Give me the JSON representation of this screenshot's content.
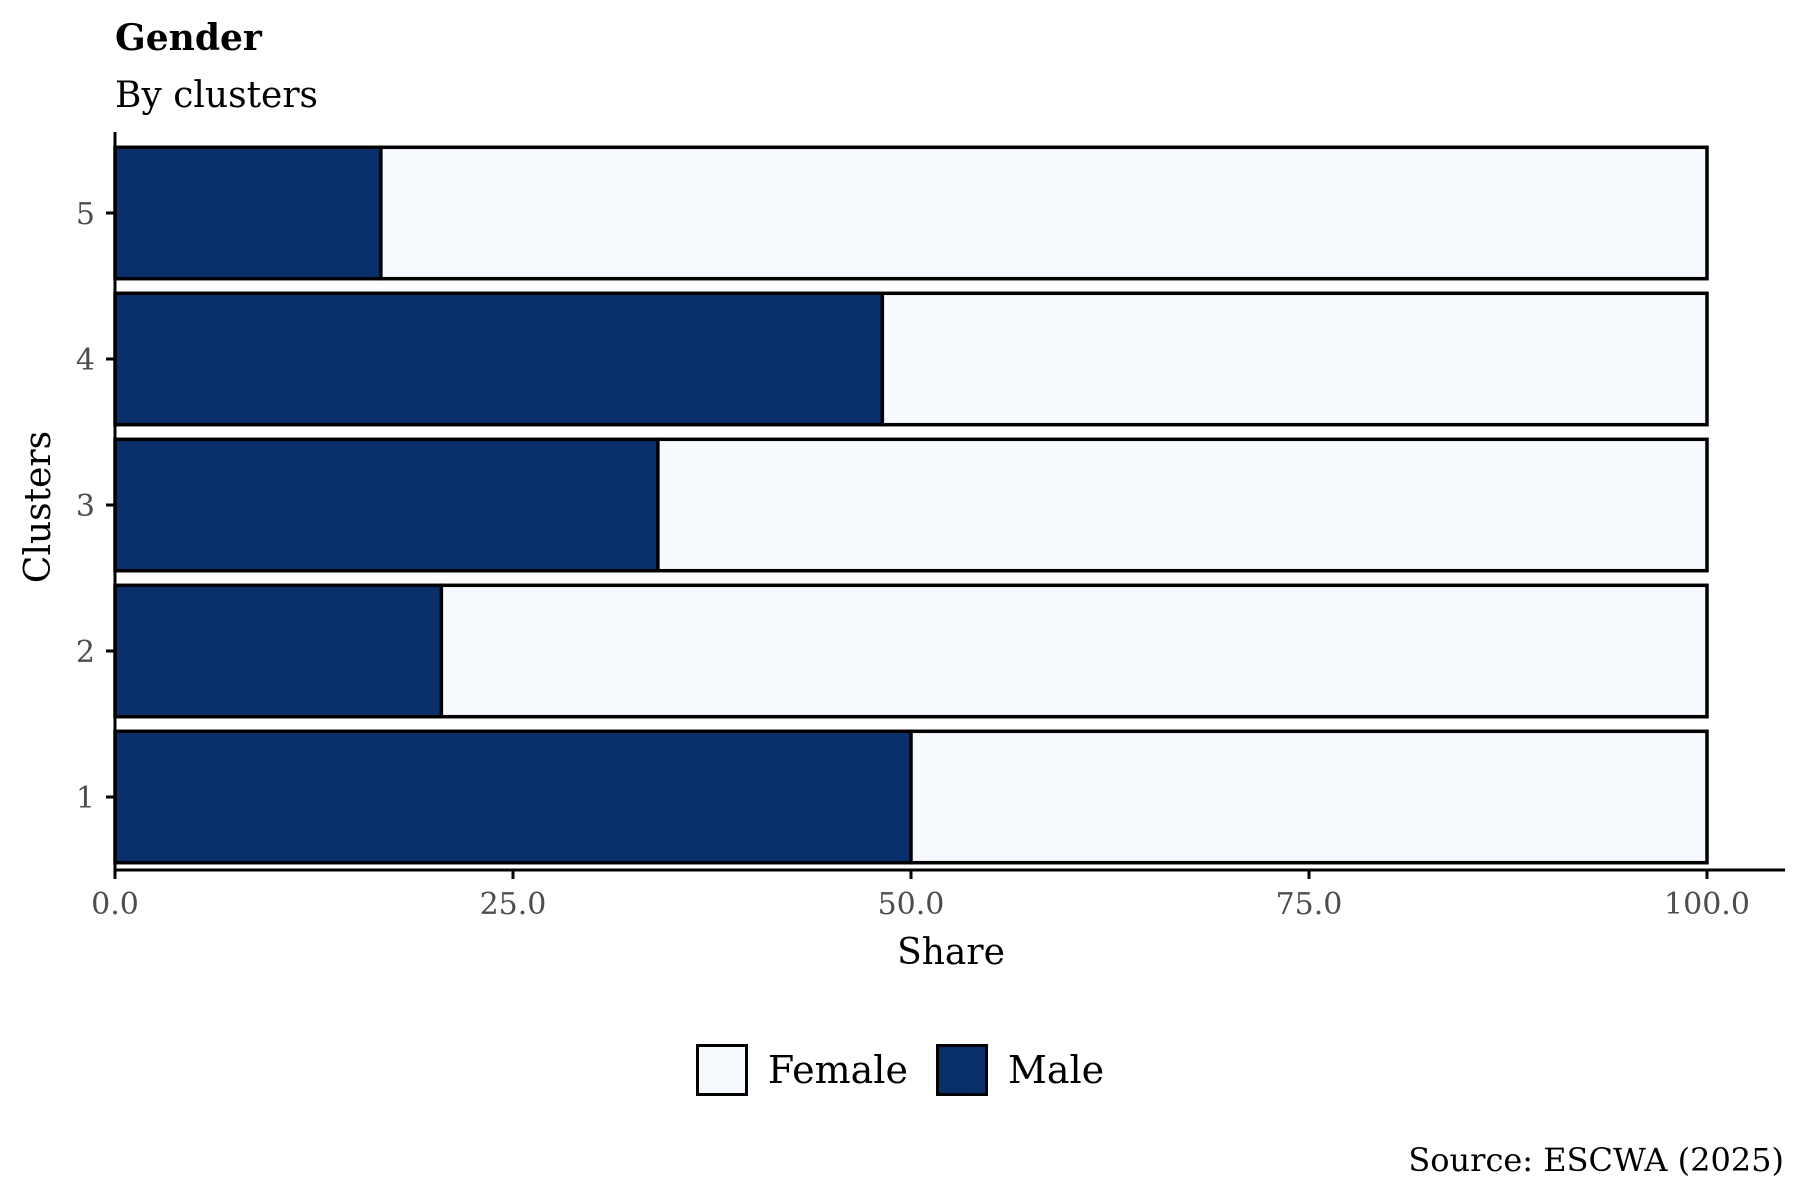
{
  "chart_data": {
    "type": "bar",
    "orientation": "horizontal",
    "stacked": true,
    "title": "Gender",
    "subtitle": "By clusters",
    "xlabel": "Share",
    "ylabel": "Clusters",
    "xlim": [
      0,
      100
    ],
    "x_ticks": [
      "0.0",
      "25.0",
      "50.0",
      "75.0",
      "100.0"
    ],
    "x_tick_values": [
      0,
      25,
      50,
      75,
      100
    ],
    "categories": [
      "1",
      "2",
      "3",
      "4",
      "5"
    ],
    "series": [
      {
        "name": "Male",
        "values": [
          50.0,
          20.5,
          34.1,
          48.2,
          16.7
        ],
        "color": "#0a306b"
      },
      {
        "name": "Female",
        "values": [
          50.0,
          79.5,
          65.9,
          51.8,
          83.3
        ],
        "color": "#f6faff"
      }
    ],
    "legend": {
      "placement": "bottom",
      "items": [
        {
          "label": "Female",
          "color": "#f6faff"
        },
        {
          "label": "Male",
          "color": "#0a306b"
        }
      ]
    },
    "grid": false,
    "source": "Source: ESCWA (2025)"
  }
}
